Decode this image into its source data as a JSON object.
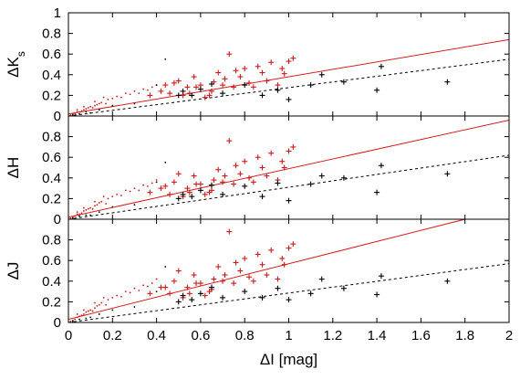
{
  "chart_data": [
    {
      "type": "scatter",
      "title": "",
      "xlabel": "",
      "ylabel": "ΔK",
      "ylabel_sub": "s",
      "xlim": [
        0,
        2
      ],
      "ylim": [
        0,
        1
      ],
      "yticks": [
        "0",
        "0.2",
        "0.4",
        "0.6",
        "0.8",
        "1"
      ],
      "xticks": [],
      "series": [
        {
          "marker": "plus",
          "color": "#cc1b1b",
          "x": [
            0.44,
            0.46,
            0.48,
            0.5,
            0.52,
            0.54,
            0.55,
            0.57,
            0.6,
            0.62,
            0.64,
            0.65,
            0.66,
            0.68,
            0.7,
            0.71,
            0.73,
            0.75,
            0.76,
            0.78,
            0.8,
            0.82,
            0.84,
            0.86,
            0.88,
            0.9,
            0.92,
            0.95,
            0.97,
            0.98,
            1.0,
            1.02,
            0.37,
            0.42,
            0.58
          ],
          "y": [
            0.3,
            0.22,
            0.32,
            0.34,
            0.2,
            0.28,
            0.22,
            0.38,
            0.3,
            0.18,
            0.2,
            0.24,
            0.33,
            0.42,
            0.3,
            0.36,
            0.6,
            0.28,
            0.44,
            0.38,
            0.46,
            0.32,
            0.28,
            0.48,
            0.42,
            0.34,
            0.52,
            0.3,
            0.46,
            0.41,
            0.53,
            0.56,
            0.2,
            0.24,
            0.28
          ]
        },
        {
          "marker": "plus",
          "color": "#000000",
          "x": [
            0.5,
            0.52,
            0.56,
            0.6,
            0.65,
            0.7,
            0.8,
            0.88,
            0.95,
            1.0,
            1.1,
            1.15,
            1.25,
            1.4,
            1.42,
            1.72
          ],
          "y": [
            0.2,
            0.24,
            0.2,
            0.26,
            0.31,
            0.22,
            0.3,
            0.2,
            0.25,
            0.16,
            0.3,
            0.4,
            0.33,
            0.25,
            0.48,
            0.33
          ]
        },
        {
          "marker": "dot",
          "color": "#cc1b1b",
          "x": [
            0.01,
            0.02,
            0.03,
            0.04,
            0.05,
            0.06,
            0.07,
            0.08,
            0.09,
            0.1,
            0.11,
            0.12,
            0.13,
            0.14,
            0.15,
            0.17,
            0.18,
            0.2,
            0.22,
            0.24,
            0.26,
            0.28,
            0.3,
            0.32,
            0.34,
            0.36,
            0.38,
            0.4,
            0.04,
            0.07,
            0.12,
            0.16
          ],
          "y": [
            0.01,
            0.02,
            0.02,
            0.04,
            0.04,
            0.05,
            0.06,
            0.07,
            0.08,
            0.09,
            0.08,
            0.1,
            0.11,
            0.12,
            0.13,
            0.12,
            0.16,
            0.17,
            0.19,
            0.18,
            0.22,
            0.21,
            0.24,
            0.22,
            0.26,
            0.25,
            0.28,
            0.3,
            0.06,
            0.09,
            0.14,
            0.18
          ]
        },
        {
          "marker": "dot",
          "color": "#000000",
          "x": [
            0.02,
            0.05,
            0.08,
            0.1,
            0.14,
            0.2,
            0.3,
            0.4,
            0.44
          ],
          "y": [
            0.01,
            0.02,
            0.04,
            0.03,
            0.06,
            0.1,
            0.12,
            0.3,
            0.55
          ]
        }
      ],
      "fits": [
        {
          "style": "solid",
          "color": "#d42020",
          "x": [
            0,
            2
          ],
          "y": [
            0.02,
            0.74
          ]
        },
        {
          "style": "dashed",
          "color": "#000000",
          "x": [
            0,
            2
          ],
          "y": [
            0.0,
            0.55
          ]
        }
      ]
    },
    {
      "type": "scatter",
      "title": "",
      "xlabel": "",
      "ylabel": "ΔH",
      "xlim": [
        0,
        2
      ],
      "ylim": [
        0,
        1
      ],
      "yticks": [
        "0",
        "0.2",
        "0.4",
        "0.6",
        "0.8",
        ""
      ],
      "xticks": [],
      "series": [
        {
          "marker": "plus",
          "color": "#cc1b1b",
          "x": [
            0.44,
            0.46,
            0.48,
            0.5,
            0.52,
            0.54,
            0.55,
            0.57,
            0.6,
            0.62,
            0.64,
            0.65,
            0.66,
            0.68,
            0.7,
            0.71,
            0.73,
            0.75,
            0.76,
            0.78,
            0.8,
            0.82,
            0.84,
            0.86,
            0.88,
            0.9,
            0.92,
            0.95,
            0.97,
            0.98,
            1.0,
            1.02,
            0.37,
            0.42,
            0.58
          ],
          "y": [
            0.32,
            0.24,
            0.36,
            0.44,
            0.22,
            0.3,
            0.26,
            0.42,
            0.34,
            0.24,
            0.26,
            0.28,
            0.38,
            0.48,
            0.36,
            0.42,
            0.76,
            0.34,
            0.52,
            0.44,
            0.56,
            0.4,
            0.36,
            0.6,
            0.5,
            0.42,
            0.64,
            0.38,
            0.56,
            0.5,
            0.66,
            0.7,
            0.26,
            0.3,
            0.34
          ]
        },
        {
          "marker": "plus",
          "color": "#000000",
          "x": [
            0.5,
            0.52,
            0.56,
            0.6,
            0.65,
            0.7,
            0.8,
            0.88,
            0.95,
            1.0,
            1.1,
            1.15,
            1.25,
            1.4,
            1.42,
            1.72
          ],
          "y": [
            0.2,
            0.24,
            0.22,
            0.28,
            0.33,
            0.24,
            0.32,
            0.22,
            0.35,
            0.18,
            0.34,
            0.42,
            0.4,
            0.26,
            0.52,
            0.44
          ]
        },
        {
          "marker": "dot",
          "color": "#cc1b1b",
          "x": [
            0.01,
            0.02,
            0.03,
            0.04,
            0.05,
            0.06,
            0.07,
            0.08,
            0.09,
            0.1,
            0.11,
            0.12,
            0.13,
            0.14,
            0.15,
            0.17,
            0.18,
            0.2,
            0.22,
            0.24,
            0.26,
            0.28,
            0.3,
            0.32,
            0.34,
            0.36,
            0.38,
            0.4,
            0.04,
            0.07,
            0.12,
            0.16
          ],
          "y": [
            0.01,
            0.02,
            0.03,
            0.05,
            0.05,
            0.06,
            0.08,
            0.09,
            0.1,
            0.11,
            0.1,
            0.13,
            0.14,
            0.16,
            0.17,
            0.15,
            0.2,
            0.22,
            0.24,
            0.23,
            0.28,
            0.27,
            0.3,
            0.28,
            0.33,
            0.32,
            0.35,
            0.38,
            0.07,
            0.11,
            0.17,
            0.22
          ]
        },
        {
          "marker": "dot",
          "color": "#000000",
          "x": [
            0.02,
            0.05,
            0.08,
            0.1,
            0.14,
            0.2,
            0.3,
            0.4,
            0.44
          ],
          "y": [
            0.01,
            0.03,
            0.04,
            0.04,
            0.07,
            0.12,
            0.14,
            0.36,
            0.55
          ]
        }
      ],
      "fits": [
        {
          "style": "solid",
          "color": "#d42020",
          "x": [
            0,
            2
          ],
          "y": [
            0.02,
            0.96
          ]
        },
        {
          "style": "dashed",
          "color": "#000000",
          "x": [
            0,
            2
          ],
          "y": [
            0.0,
            0.62
          ]
        }
      ]
    },
    {
      "type": "scatter",
      "title": "",
      "xlabel": "ΔI [mag]",
      "ylabel": "ΔJ",
      "xlim": [
        0,
        2
      ],
      "ylim": [
        0,
        1
      ],
      "yticks": [
        "0",
        "0.2",
        "0.4",
        "0.6",
        "0.8",
        ""
      ],
      "xticks": [
        "0",
        "0.2",
        "0.4",
        "0.6",
        "0.8",
        "1",
        "1.2",
        "1.4",
        "1.6",
        "1.8",
        "2"
      ],
      "series": [
        {
          "marker": "plus",
          "color": "#cc1b1b",
          "x": [
            0.44,
            0.46,
            0.48,
            0.5,
            0.52,
            0.54,
            0.55,
            0.57,
            0.6,
            0.62,
            0.64,
            0.65,
            0.66,
            0.68,
            0.7,
            0.71,
            0.73,
            0.75,
            0.76,
            0.78,
            0.8,
            0.82,
            0.84,
            0.86,
            0.88,
            0.9,
            0.92,
            0.95,
            0.97,
            0.98,
            1.0,
            1.02,
            0.37,
            0.42,
            0.58
          ],
          "y": [
            0.34,
            0.28,
            0.4,
            0.5,
            0.24,
            0.34,
            0.28,
            0.46,
            0.38,
            0.26,
            0.3,
            0.32,
            0.42,
            0.54,
            0.4,
            0.46,
            0.88,
            0.38,
            0.58,
            0.5,
            0.62,
            0.44,
            0.4,
            0.66,
            0.56,
            0.46,
            0.7,
            0.42,
            0.62,
            0.56,
            0.72,
            0.76,
            0.28,
            0.34,
            0.38
          ]
        },
        {
          "marker": "plus",
          "color": "#000000",
          "x": [
            0.5,
            0.52,
            0.56,
            0.6,
            0.65,
            0.7,
            0.8,
            0.88,
            0.95,
            1.0,
            1.1,
            1.15,
            1.25,
            1.4,
            1.42,
            1.72
          ],
          "y": [
            0.2,
            0.26,
            0.22,
            0.28,
            0.34,
            0.24,
            0.3,
            0.24,
            0.33,
            0.22,
            0.28,
            0.42,
            0.33,
            0.27,
            0.45,
            0.4
          ]
        },
        {
          "marker": "dot",
          "color": "#cc1b1b",
          "x": [
            0.01,
            0.02,
            0.03,
            0.04,
            0.05,
            0.06,
            0.07,
            0.08,
            0.09,
            0.1,
            0.11,
            0.12,
            0.13,
            0.14,
            0.15,
            0.17,
            0.18,
            0.2,
            0.22,
            0.24,
            0.26,
            0.28,
            0.3,
            0.32,
            0.34,
            0.36,
            0.38,
            0.4,
            0.04,
            0.07,
            0.12,
            0.16
          ],
          "y": [
            0.01,
            0.02,
            0.03,
            0.05,
            0.06,
            0.07,
            0.08,
            0.1,
            0.11,
            0.12,
            0.11,
            0.14,
            0.16,
            0.17,
            0.19,
            0.17,
            0.22,
            0.24,
            0.26,
            0.25,
            0.3,
            0.29,
            0.33,
            0.31,
            0.36,
            0.35,
            0.38,
            0.42,
            0.08,
            0.12,
            0.19,
            0.24
          ]
        },
        {
          "marker": "dot",
          "color": "#000000",
          "x": [
            0.02,
            0.05,
            0.08,
            0.1,
            0.14,
            0.2,
            0.3,
            0.4,
            0.44
          ],
          "y": [
            0.01,
            0.03,
            0.04,
            0.05,
            0.08,
            0.12,
            0.15,
            0.3,
            0.54
          ]
        }
      ],
      "fits": [
        {
          "style": "solid",
          "color": "#d42020",
          "x": [
            0,
            1.8
          ],
          "y": [
            0.03,
            1.0
          ]
        },
        {
          "style": "dashed",
          "color": "#000000",
          "x": [
            0,
            2
          ],
          "y": [
            0.0,
            0.57
          ]
        }
      ]
    }
  ]
}
